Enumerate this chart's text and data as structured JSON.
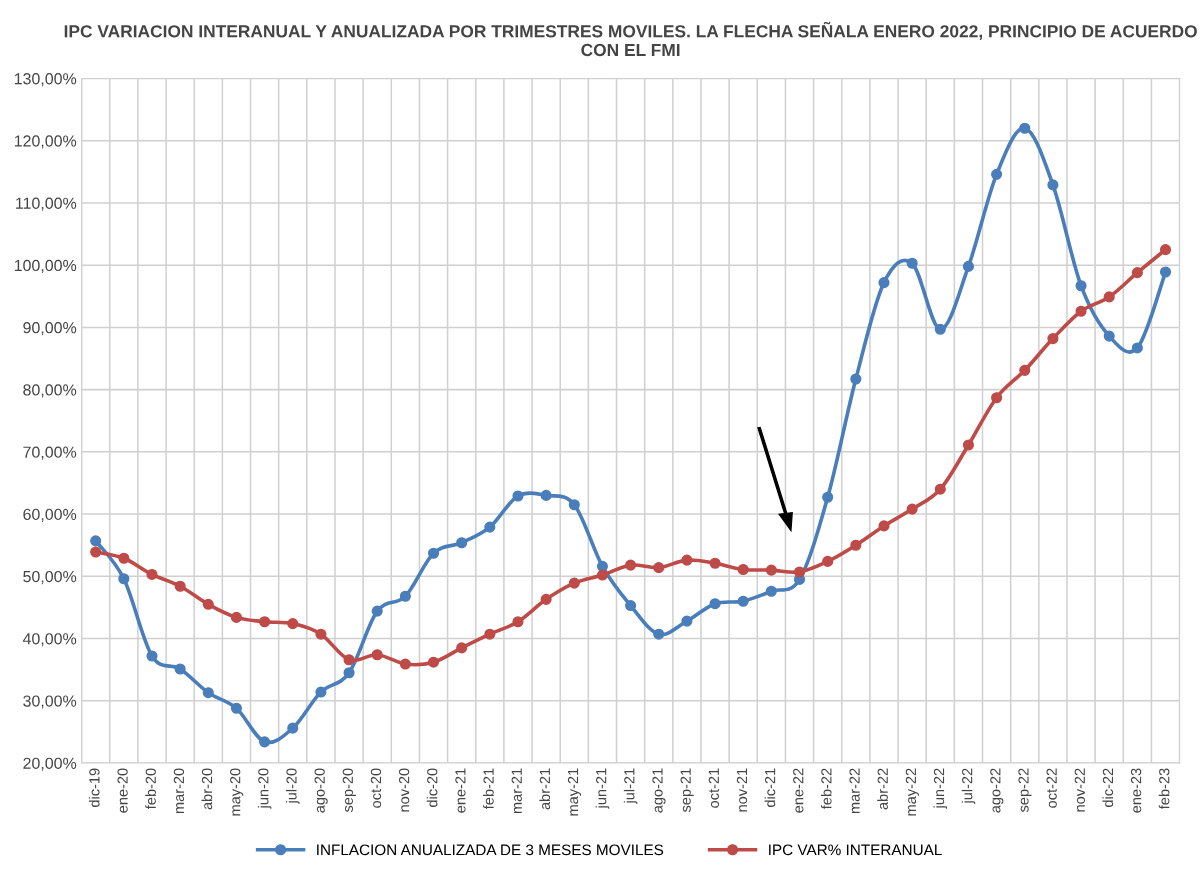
{
  "chart_data": {
    "type": "line",
    "title": "IPC VARIACION INTERANUAL Y ANUALIZADA POR TRIMESTRES MOVILES. LA FLECHA SEÑALA ENERO 2022, PRINCIPIO DE ACUERDO CON EL FMI",
    "categories": [
      "dic-19",
      "ene-20",
      "feb-20",
      "mar-20",
      "abr-20",
      "may-20",
      "jun-20",
      "jul-20",
      "ago-20",
      "sep-20",
      "oct-20",
      "nov-20",
      "dic-20",
      "ene-21",
      "feb-21",
      "mar-21",
      "abr-21",
      "may-21",
      "jun-21",
      "jul-21",
      "ago-21",
      "sep-21",
      "oct-21",
      "nov-21",
      "dic-21",
      "ene-22",
      "feb-22",
      "mar-22",
      "abr-22",
      "may-22",
      "jun-22",
      "jul-22",
      "ago-22",
      "sep-22",
      "oct-22",
      "nov-22",
      "dic-22",
      "ene-23",
      "feb-23"
    ],
    "series": [
      {
        "name": "INFLACION ANUALIZADA DE 3 MESES MOVILES",
        "color": "#4a7ebb",
        "values": [
          55.7,
          49.6,
          37.2,
          35.1,
          31.3,
          28.8,
          23.4,
          25.6,
          31.4,
          34.5,
          44.4,
          46.8,
          53.7,
          55.4,
          57.9,
          62.9,
          63.0,
          61.5,
          51.6,
          45.3,
          40.7,
          42.8,
          45.6,
          46.0,
          47.6,
          49.5,
          62.7,
          81.7,
          97.2,
          100.3,
          89.7,
          99.8,
          114.6,
          122.0,
          112.9,
          96.7,
          88.6,
          86.7,
          98.9
        ]
      },
      {
        "name": "IPC VAR% INTERANUAL",
        "color": "#be4b48",
        "values": [
          53.9,
          52.9,
          50.3,
          48.4,
          45.5,
          43.4,
          42.7,
          42.4,
          40.7,
          36.6,
          37.4,
          35.9,
          36.2,
          38.5,
          40.7,
          42.7,
          46.3,
          48.9,
          50.2,
          51.8,
          51.4,
          52.6,
          52.1,
          51.1,
          51.0,
          50.7,
          52.4,
          55.0,
          58.1,
          60.8,
          64.0,
          71.1,
          78.7,
          83.1,
          88.2,
          92.6,
          94.9,
          98.8,
          102.5
        ]
      }
    ],
    "ylim": [
      20,
      130
    ],
    "yticks": [
      {
        "value": 20,
        "label": "20,00%"
      },
      {
        "value": 30,
        "label": "30,00%"
      },
      {
        "value": 40,
        "label": "40,00%"
      },
      {
        "value": 50,
        "label": "50,00%"
      },
      {
        "value": 60,
        "label": "60,00%"
      },
      {
        "value": 70,
        "label": "70,00%"
      },
      {
        "value": 80,
        "label": "80,00%"
      },
      {
        "value": 90,
        "label": "90,00%"
      },
      {
        "value": 100,
        "label": "100,00%"
      },
      {
        "value": 110,
        "label": "110,00%"
      },
      {
        "value": 120,
        "label": "120,00%"
      },
      {
        "value": 130,
        "label": "130,00%"
      }
    ],
    "grid": true,
    "legend": "bottom",
    "marker": "circle",
    "line_style": "solid"
  }
}
